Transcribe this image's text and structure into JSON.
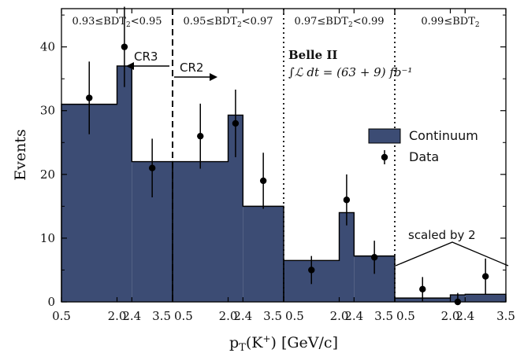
{
  "chart_data": {
    "type": "bar",
    "xlabel": "p_T(K^+) [GeV/c]",
    "ylabel": "Events",
    "ylim": [
      0,
      46
    ],
    "y_ticks": [
      0,
      10,
      20,
      30,
      40
    ],
    "bin_edges": [
      0.5,
      2.0,
      2.4,
      3.5
    ],
    "x_tick_labels": [
      "0.5",
      "2.0",
      "2.4",
      "3.5",
      "0.5",
      "2.0",
      "2.4",
      "3.5",
      "0.5",
      "2.0",
      "2.4",
      "3.5",
      "0.5",
      "2.0",
      "2.4",
      "3.5"
    ],
    "regions": [
      {
        "label": "0.93≤BDT2<0.95",
        "continuum": [
          31,
          37,
          22
        ],
        "data": [
          32,
          40,
          21
        ],
        "data_err": [
          5.7,
          6.3,
          4.6
        ]
      },
      {
        "label": "0.95≤BDT2<0.97",
        "continuum": [
          22,
          29.3,
          15
        ],
        "data": [
          26,
          28,
          19
        ],
        "data_err": [
          5.1,
          5.3,
          4.4
        ]
      },
      {
        "label": "0.97≤BDT2<0.99",
        "continuum": [
          6.5,
          14,
          7.2
        ],
        "data": [
          5,
          16,
          7
        ],
        "data_err": [
          2.2,
          4.0,
          2.6
        ]
      },
      {
        "label": "0.99≤BDT2",
        "continuum": [
          0.6,
          1.1,
          1.2
        ],
        "data": [
          2,
          0,
          4
        ],
        "data_err": [
          1.9,
          1.4,
          2.8
        ]
      }
    ],
    "series": [
      {
        "name": "Continuum",
        "color": "#3c4c74"
      },
      {
        "name": "Data",
        "color": "#000000"
      }
    ],
    "legend": "right",
    "annotations": {
      "cr3": "CR3",
      "cr2": "CR2",
      "experiment": "Belle II",
      "luminosity": "∫ℒ dt = (63 + 9) fb⁻¹",
      "scaled_note": "scaled by 2"
    }
  }
}
